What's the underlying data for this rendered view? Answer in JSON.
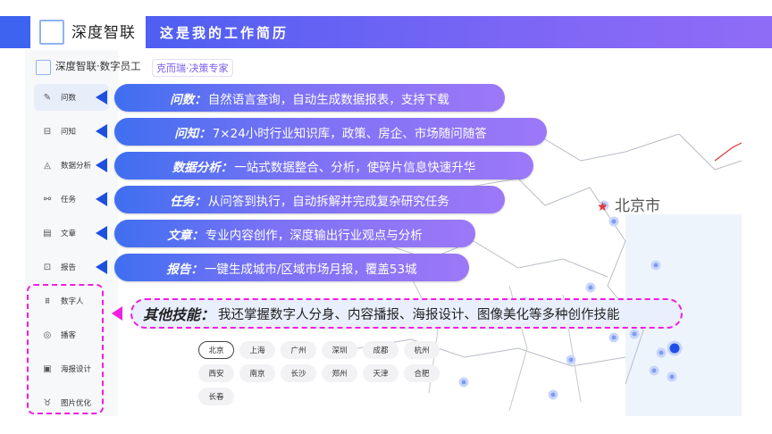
{
  "header": {
    "brand": "深度智联",
    "title": "这是我的工作简历"
  },
  "card": {
    "product": "深度智联·数字员工",
    "tag": "克而瑞·决策专家"
  },
  "sidebar": {
    "items": [
      {
        "label": "问数",
        "icon": "chart-edit-icon",
        "active": true
      },
      {
        "label": "问知",
        "icon": "book-icon"
      },
      {
        "label": "数据分析",
        "icon": "analysis-icon"
      },
      {
        "label": "任务",
        "icon": "flow-icon"
      },
      {
        "label": "文章",
        "icon": "document-icon"
      },
      {
        "label": "报告",
        "icon": "presentation-icon"
      },
      {
        "label": "数字人",
        "icon": "digital-human-icon"
      },
      {
        "label": "播客",
        "icon": "podcast-icon"
      },
      {
        "label": "海报设计",
        "icon": "poster-icon"
      },
      {
        "label": "图片优化",
        "icon": "image-enhance-icon"
      }
    ]
  },
  "skills": [
    {
      "name": "问数：",
      "desc": "自然语言查询，自动生成数据报表，支持下载"
    },
    {
      "name": "问知：",
      "desc": "7×24小时行业知识库，政策、房企、市场随问随答"
    },
    {
      "name": "数据分析：",
      "desc": "一站式数据整合、分析，使碎片信息快速升华"
    },
    {
      "name": "任务：",
      "desc": "从问答到执行，自动拆解并完成复杂研究任务"
    },
    {
      "name": "文章：",
      "desc": "专业内容创作，深度输出行业观点与分析"
    },
    {
      "name": "报告：",
      "desc": "一键生成城市/区域市场月报，覆盖53城"
    }
  ],
  "other_skills": {
    "name": "其他技能：",
    "desc": "我还掌握数字人分身、内容播报、海报设计、图像美化等多种创作技能"
  },
  "cities": [
    "北京",
    "上海",
    "广州",
    "深圳",
    "成都",
    "杭州",
    "西安",
    "南京",
    "长沙",
    "郑州",
    "天津",
    "合肥",
    "长春"
  ],
  "selected_city": "北京",
  "map": {
    "label": "北京市"
  },
  "colors": {
    "accent": "#3d63f0",
    "highlight": "#f01ee0"
  }
}
